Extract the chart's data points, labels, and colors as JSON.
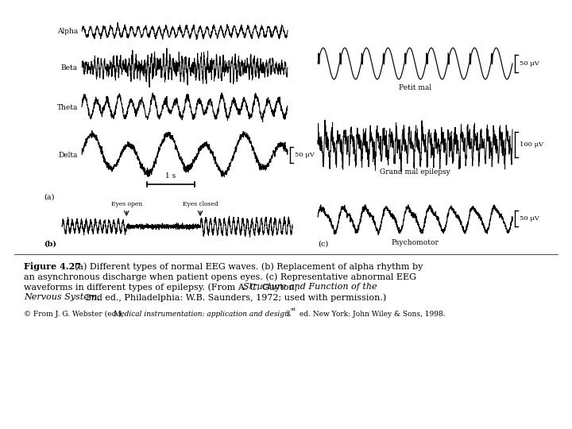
{
  "background_color": "#ffffff",
  "wave_labels_left": [
    "Alpha",
    "Beta",
    "Theta",
    "Delta"
  ],
  "panel_labels_right": [
    "Petit mal",
    "Grand mal epilepsy",
    "Psychomotor"
  ],
  "scale_bar_delta": "50 μV",
  "scale_bar_petit": "50 μV",
  "scale_bar_grand": "100 μV",
  "scale_bar_psycho": "50 μV",
  "time_bar": "1 s",
  "eyes_open_label": "Eyes open",
  "eyes_closed_label": "Eyes closed",
  "label_a": "(a)",
  "label_b": "(b)",
  "label_c": "(c)"
}
